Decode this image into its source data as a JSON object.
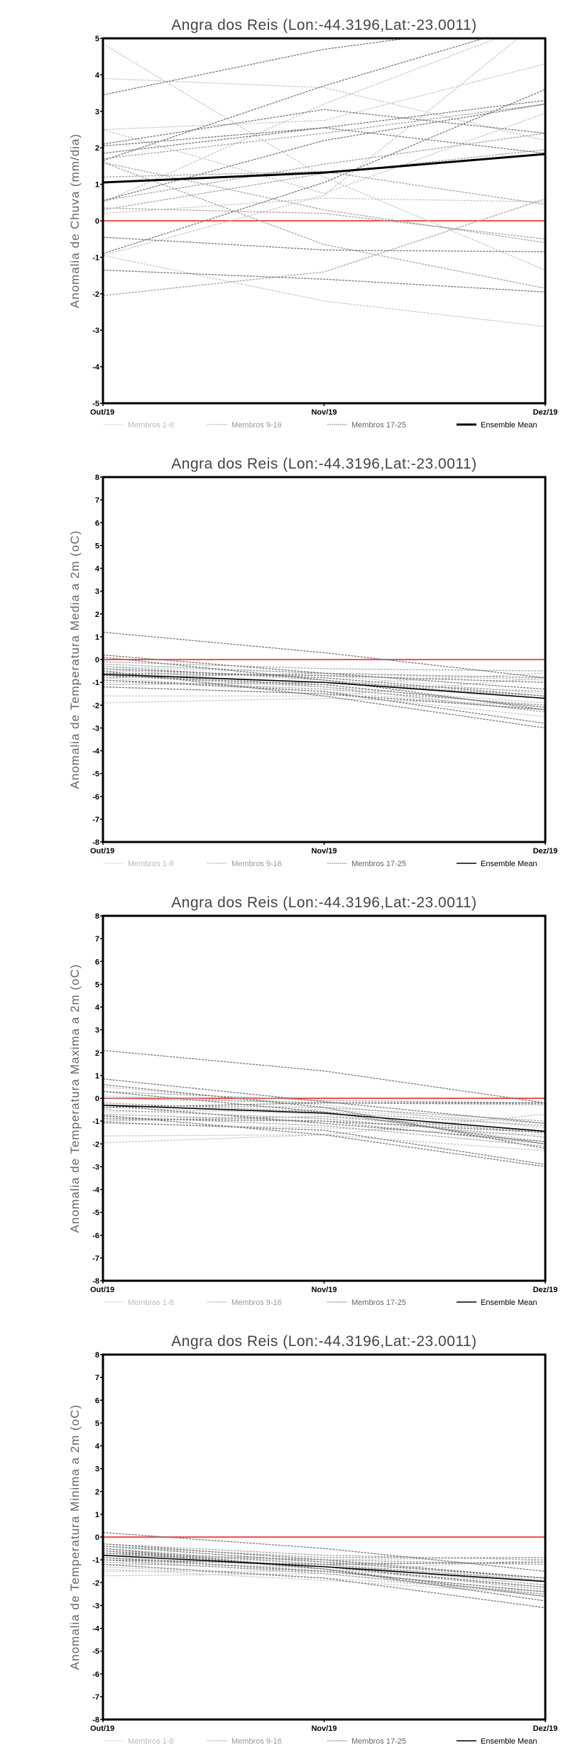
{
  "styles": {
    "members_1_8": "#c8c8c8",
    "members_9_16": "#a4a4a4",
    "members_17_25": "#767676",
    "mean": "#000000",
    "zero_line": "#f05050"
  },
  "chart_data": [
    {
      "type": "line",
      "title": "Angra dos Reis (Lon:-44.3196,Lat:-23.0011)",
      "ylabel": "Anomalia de Chuva (mm/dia)",
      "xlabel": "",
      "categories": [
        "Out/19",
        "Nov/19",
        "Dez/19"
      ],
      "ylim": [
        -5,
        5
      ],
      "yticks": [
        -5,
        -4,
        -3,
        -2,
        -1,
        0,
        1,
        2,
        3,
        4,
        5
      ],
      "mean_width": "thick",
      "legend": [
        "Membros 1-8",
        "Membros 9-16",
        "Membros 17-25",
        "Ensemble Mean"
      ],
      "members_1_8": [
        [
          4.85,
          1.2,
          -1.35
        ],
        [
          3.9,
          3.65,
          2.2
        ],
        [
          2.5,
          2.75,
          4.3
        ],
        [
          -0.95,
          -2.2,
          -2.9
        ],
        [
          -0.95,
          0.7,
          5.6
        ],
        [
          0.2,
          0.62,
          0.52
        ],
        [
          0.5,
          3.2,
          5.5
        ],
        [
          2.5,
          0.75,
          2.95
        ]
      ],
      "members_9_16": [
        [
          1.6,
          0.3,
          -0.6
        ],
        [
          0.55,
          1.55,
          2.4
        ],
        [
          0.3,
          1.3,
          1.95
        ],
        [
          1.2,
          1.35,
          0.45
        ],
        [
          -2.05,
          -1.4,
          0.6
        ],
        [
          1.7,
          2.4,
          3.2
        ],
        [
          1.6,
          -0.65,
          -1.85
        ],
        [
          0.35,
          0.2,
          -0.5
        ]
      ],
      "members_17_25": [
        [
          3.45,
          4.7,
          5.5
        ],
        [
          1.65,
          3.7,
          5.5
        ],
        [
          2.05,
          2.55,
          1.85
        ],
        [
          1.85,
          2.55,
          3.3
        ],
        [
          2.1,
          3.05,
          2.4
        ],
        [
          0.55,
          2.2,
          3.2
        ],
        [
          -0.9,
          1.05,
          3.6
        ],
        [
          -0.45,
          -0.8,
          -0.85
        ],
        [
          -1.35,
          -1.6,
          -1.95
        ]
      ],
      "ensemble_mean": [
        1.05,
        1.32,
        1.83
      ]
    },
    {
      "type": "line",
      "title": "Angra dos Reis (Lon:-44.3196,Lat:-23.0011)",
      "ylabel": "Anomalia de Temperatura Media a 2m (oC)",
      "xlabel": "",
      "categories": [
        "Out/19",
        "Nov/19",
        "Dez/19"
      ],
      "ylim": [
        -8,
        8
      ],
      "yticks": [
        -8,
        -7,
        -6,
        -5,
        -4,
        -3,
        -2,
        -1,
        0,
        1,
        2,
        3,
        4,
        5,
        6,
        7,
        8
      ],
      "mean_width": "thin",
      "legend": [
        "Membros 1-8",
        "Membros 9-16",
        "Membros 17-25",
        "Ensemble Mean"
      ],
      "members_1_8": [
        [
          -1.9,
          -1.7,
          -2.0
        ],
        [
          -1.6,
          -1.6,
          -0.8
        ],
        [
          -1.2,
          -1.5,
          -2.5
        ],
        [
          -0.3,
          -0.6,
          -0.9
        ],
        [
          -0.8,
          -1.4,
          -2.2
        ],
        [
          -0.5,
          -0.7,
          -1.5
        ],
        [
          -1.0,
          -1.1,
          -0.6
        ],
        [
          -0.4,
          -1.2,
          -1.9
        ]
      ],
      "members_9_16": [
        [
          -0.2,
          -0.6,
          -0.8
        ],
        [
          -0.6,
          -1.0,
          -1.6
        ],
        [
          -0.9,
          -1.3,
          -2.0
        ],
        [
          -0.1,
          -0.4,
          -0.5
        ],
        [
          -0.7,
          -1.2,
          -2.3
        ],
        [
          -1.1,
          -1.0,
          -1.4
        ],
        [
          -0.3,
          -0.9,
          -1.7
        ],
        [
          -0.8,
          -0.6,
          -0.8
        ]
      ],
      "members_17_25": [
        [
          1.2,
          0.3,
          -0.8
        ],
        [
          0.2,
          -0.6,
          -1.3
        ],
        [
          0.1,
          -0.9,
          -2.2
        ],
        [
          -0.5,
          -1.6,
          -3.0
        ],
        [
          -0.9,
          -1.4,
          -2.8
        ],
        [
          -0.4,
          -0.8,
          -1.6
        ],
        [
          -0.7,
          -1.1,
          -2.1
        ],
        [
          -1.2,
          -1.5,
          -2.2
        ],
        [
          -0.6,
          -0.7,
          -1.0
        ]
      ],
      "ensemble_mean": [
        -0.65,
        -1.0,
        -1.7
      ]
    },
    {
      "type": "line",
      "title": "Angra dos Reis (Lon:-44.3196,Lat:-23.0011)",
      "ylabel": "Anomalia de Temperatura Maxima a 2m (oC)",
      "xlabel": "",
      "categories": [
        "Out/19",
        "Nov/19",
        "Dez/19"
      ],
      "ylim": [
        -8,
        8
      ],
      "yticks": [
        -8,
        -7,
        -6,
        -5,
        -4,
        -3,
        -2,
        -1,
        0,
        1,
        2,
        3,
        4,
        5,
        6,
        7,
        8
      ],
      "mean_width": "thin",
      "legend": [
        "Membros 1-8",
        "Membros 9-16",
        "Membros 17-25",
        "Ensemble Mean"
      ],
      "members_1_8": [
        [
          -1.95,
          -1.6,
          -2.3
        ],
        [
          -1.65,
          -1.6,
          -0.7
        ],
        [
          -0.9,
          -0.8,
          -1.4
        ],
        [
          0.5,
          -0.3,
          -1.3
        ],
        [
          -0.4,
          -0.7,
          -1.9
        ],
        [
          -1.1,
          -1.3,
          -1.6
        ],
        [
          0.1,
          -0.2,
          -0.3
        ],
        [
          -0.6,
          -0.5,
          -1.1
        ]
      ],
      "members_9_16": [
        [
          0.3,
          -0.1,
          -0.2
        ],
        [
          -0.2,
          -0.6,
          -1.2
        ],
        [
          -0.7,
          -1.0,
          -2.0
        ],
        [
          -1.0,
          -0.8,
          -1.5
        ],
        [
          0.0,
          -0.2,
          -0.25
        ],
        [
          -0.5,
          -0.9,
          -1.7
        ],
        [
          -0.3,
          -0.4,
          -1.0
        ],
        [
          -0.8,
          -1.2,
          -2.1
        ]
      ],
      "members_17_25": [
        [
          2.1,
          1.2,
          -0.2
        ],
        [
          0.85,
          -0.15,
          -1.1
        ],
        [
          0.6,
          -0.4,
          -2.2
        ],
        [
          -0.75,
          -1.6,
          -3.0
        ],
        [
          -1.05,
          -1.4,
          -2.9
        ],
        [
          -0.4,
          -0.2,
          -0.2
        ],
        [
          0.3,
          -0.6,
          -2.0
        ],
        [
          -0.3,
          -1.1,
          -1.9
        ],
        [
          -0.9,
          -1.0,
          -1.5
        ]
      ],
      "ensemble_mean": [
        -0.3,
        -0.65,
        -1.45
      ]
    },
    {
      "type": "line",
      "title": "Angra dos Reis (Lon:-44.3196,Lat:-23.0011)",
      "ylabel": "Anomalia de Temperatura Minima a 2m (oC)",
      "xlabel": "",
      "categories": [
        "Out/19",
        "Nov/19",
        "Dez/19"
      ],
      "ylim": [
        -8,
        8
      ],
      "yticks": [
        -8,
        -7,
        -6,
        -5,
        -4,
        -3,
        -2,
        -1,
        0,
        1,
        2,
        3,
        4,
        5,
        6,
        7,
        8
      ],
      "mean_width": "thin",
      "legend": [
        "Membros 1-8",
        "Membros 9-16",
        "Membros 17-25",
        "Ensemble Mean"
      ],
      "members_1_8": [
        [
          -1.7,
          -1.6,
          -2.6
        ],
        [
          -1.5,
          -1.5,
          -1.0
        ],
        [
          -1.3,
          -1.8,
          -2.4
        ],
        [
          -0.6,
          -1.1,
          -1.2
        ],
        [
          -1.0,
          -1.4,
          -2.2
        ],
        [
          -1.4,
          -1.9,
          -2.5
        ],
        [
          -0.8,
          -1.0,
          -0.9
        ],
        [
          -1.2,
          -1.3,
          -1.8
        ]
      ],
      "members_9_16": [
        [
          -0.3,
          -0.8,
          -1.0
        ],
        [
          -0.6,
          -1.2,
          -1.9
        ],
        [
          -0.9,
          -1.3,
          -2.3
        ],
        [
          -0.4,
          -0.9,
          -0.9
        ],
        [
          -1.1,
          -1.5,
          -2.4
        ],
        [
          -0.7,
          -1.0,
          -1.2
        ],
        [
          -0.5,
          -1.2,
          -2.1
        ],
        [
          -1.0,
          -1.6,
          -2.5
        ]
      ],
      "members_17_25": [
        [
          0.2,
          -0.5,
          -1.5
        ],
        [
          -0.3,
          -1.0,
          -1.8
        ],
        [
          -0.5,
          -1.4,
          -2.8
        ],
        [
          -1.2,
          -1.8,
          -3.1
        ],
        [
          -0.7,
          -1.3,
          -2.2
        ],
        [
          -0.9,
          -1.5,
          -2.4
        ],
        [
          -0.4,
          -1.1,
          -1.8
        ],
        [
          -1.0,
          -1.2,
          -1.1
        ],
        [
          -0.6,
          -1.4,
          -2.6
        ]
      ],
      "ensemble_mean": [
        -0.8,
        -1.3,
        -1.95
      ]
    }
  ]
}
